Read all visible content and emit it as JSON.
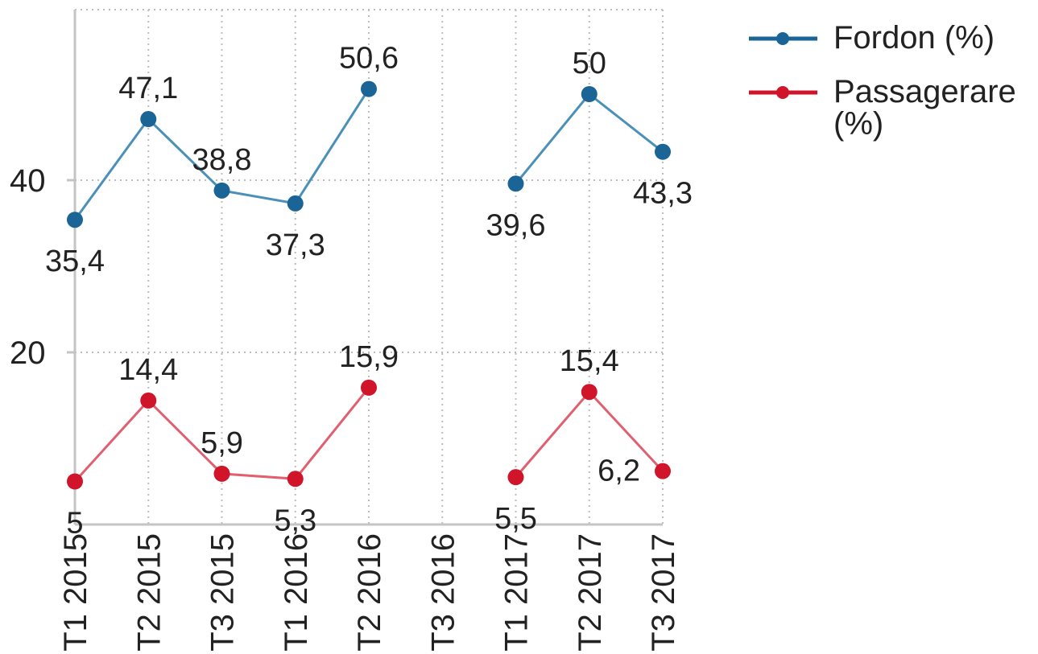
{
  "chart_data": {
    "type": "line",
    "categories": [
      "T1 2015",
      "T2 2015",
      "T3 2015",
      "T1 2016",
      "T2 2016",
      "T3 2016",
      "T1 2017",
      "T2 2017",
      "T3 2017"
    ],
    "series": [
      {
        "name": "Fordon (%)",
        "color": "#1a6496",
        "line_color": "#4a90b8",
        "values": [
          35.4,
          47.1,
          38.8,
          37.3,
          50.6,
          null,
          39.6,
          50,
          43.3
        ],
        "labels": [
          "35,4",
          "47,1",
          "38,8",
          "37,3",
          "50,6",
          "",
          "39,6",
          "50",
          "43,3"
        ]
      },
      {
        "name": "Passagerare (%)",
        "color": "#d0152b",
        "line_color": "#e06070",
        "values": [
          5,
          14.4,
          5.9,
          5.3,
          15.9,
          null,
          5.5,
          15.4,
          6.2
        ],
        "labels": [
          "5",
          "14,4",
          "5,9",
          "5,3",
          "15,9",
          "",
          "5,5",
          "15,4",
          "6,2"
        ]
      }
    ],
    "yticks": [
      "20",
      "40"
    ],
    "ylim": [
      0,
      60
    ],
    "grid": true,
    "legend": "top-right",
    "title": "",
    "xlabel": "",
    "ylabel": ""
  }
}
